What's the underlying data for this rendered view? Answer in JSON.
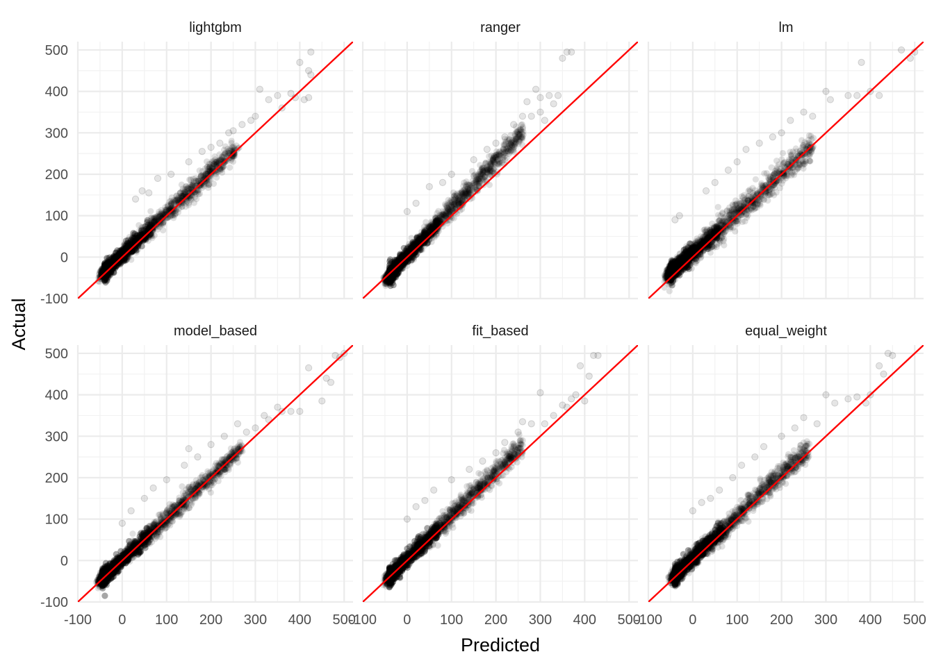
{
  "chart_data": {
    "type": "scatter",
    "xlabel": "Predicted",
    "ylabel": "Actual",
    "xlim": [
      -100,
      520
    ],
    "ylim": [
      -100,
      520
    ],
    "x_ticks": [
      -100,
      0,
      100,
      200,
      300,
      400,
      500
    ],
    "y_ticks": [
      -100,
      0,
      100,
      200,
      300,
      400,
      500
    ],
    "x_tick_labels": [
      "-100",
      "0",
      "100",
      "200",
      "300",
      "400",
      "500"
    ],
    "y_tick_labels": [
      "-100",
      "0",
      "100",
      "200",
      "300",
      "400",
      "500"
    ],
    "grid": true,
    "reference_line": {
      "intercept": 0,
      "slope": 1,
      "color": "#ff0000"
    },
    "point_color": "#000000",
    "point_alpha": 0.1,
    "panels": [
      {
        "title": "lightgbm",
        "bulk": {
          "x_range": [
            -45,
            260
          ],
          "center": "y = x + 5",
          "spread": 22
        },
        "outliers": [
          [
            30,
            140
          ],
          [
            45,
            160
          ],
          [
            60,
            155
          ],
          [
            80,
            190
          ],
          [
            110,
            200
          ],
          [
            150,
            230
          ],
          [
            180,
            255
          ],
          [
            200,
            265
          ],
          [
            220,
            275
          ],
          [
            240,
            300
          ],
          [
            250,
            305
          ],
          [
            270,
            320
          ],
          [
            290,
            330
          ],
          [
            300,
            340
          ],
          [
            310,
            405
          ],
          [
            330,
            380
          ],
          [
            350,
            390
          ],
          [
            360,
            360
          ],
          [
            380,
            395
          ],
          [
            390,
            385
          ],
          [
            400,
            470
          ],
          [
            410,
            380
          ],
          [
            420,
            450
          ],
          [
            420,
            385
          ],
          [
            425,
            495
          ],
          [
            425,
            440
          ]
        ]
      },
      {
        "title": "ranger",
        "bulk": {
          "x_range": [
            -45,
            260
          ],
          "center": "y = 1.15x + 2",
          "spread": 22
        },
        "outliers": [
          [
            0,
            110
          ],
          [
            20,
            130
          ],
          [
            50,
            170
          ],
          [
            80,
            180
          ],
          [
            100,
            200
          ],
          [
            150,
            235
          ],
          [
            180,
            260
          ],
          [
            200,
            275
          ],
          [
            220,
            290
          ],
          [
            240,
            320
          ],
          [
            260,
            340
          ],
          [
            270,
            375
          ],
          [
            280,
            340
          ],
          [
            290,
            405
          ],
          [
            300,
            385
          ],
          [
            320,
            390
          ],
          [
            330,
            370
          ],
          [
            340,
            390
          ],
          [
            350,
            480
          ],
          [
            360,
            495
          ],
          [
            370,
            495
          ],
          [
            300,
            350
          ],
          [
            310,
            330
          ]
        ]
      },
      {
        "title": "lm",
        "bulk": {
          "x_range": [
            -55,
            270
          ],
          "center": "y = 0.95x + 10",
          "spread": 28
        },
        "outliers": [
          [
            -30,
            100
          ],
          [
            -40,
            90
          ],
          [
            -50,
            -40
          ],
          [
            -55,
            -30
          ],
          [
            30,
            160
          ],
          [
            50,
            180
          ],
          [
            80,
            210
          ],
          [
            100,
            230
          ],
          [
            120,
            260
          ],
          [
            150,
            275
          ],
          [
            180,
            290
          ],
          [
            200,
            300
          ],
          [
            220,
            330
          ],
          [
            250,
            350
          ],
          [
            270,
            340
          ],
          [
            300,
            400
          ],
          [
            310,
            380
          ],
          [
            350,
            390
          ],
          [
            370,
            390
          ],
          [
            380,
            470
          ],
          [
            400,
            400
          ],
          [
            420,
            390
          ],
          [
            470,
            500
          ],
          [
            490,
            480
          ],
          [
            500,
            495
          ]
        ]
      },
      {
        "title": "model_based",
        "bulk": {
          "x_range": [
            -50,
            270
          ],
          "center": "y = x + 2",
          "spread": 20
        },
        "outliers": [
          [
            0,
            90
          ],
          [
            20,
            120
          ],
          [
            50,
            150
          ],
          [
            70,
            175
          ],
          [
            100,
            195
          ],
          [
            140,
            230
          ],
          [
            150,
            270
          ],
          [
            170,
            250
          ],
          [
            200,
            280
          ],
          [
            230,
            300
          ],
          [
            260,
            330
          ],
          [
            280,
            310
          ],
          [
            300,
            320
          ],
          [
            320,
            350
          ],
          [
            330,
            340
          ],
          [
            350,
            370
          ],
          [
            360,
            360
          ],
          [
            380,
            360
          ],
          [
            400,
            360
          ],
          [
            420,
            465
          ],
          [
            450,
            385
          ],
          [
            460,
            440
          ],
          [
            470,
            430
          ],
          [
            480,
            495
          ],
          [
            490,
            490
          ],
          [
            500,
            500
          ]
        ]
      },
      {
        "title": "fit_based",
        "bulk": {
          "x_range": [
            -45,
            260
          ],
          "center": "y = 1.05x + 3",
          "spread": 22
        },
        "outliers": [
          [
            0,
            100
          ],
          [
            20,
            130
          ],
          [
            40,
            145
          ],
          [
            60,
            170
          ],
          [
            100,
            195
          ],
          [
            140,
            220
          ],
          [
            170,
            240
          ],
          [
            200,
            260
          ],
          [
            220,
            285
          ],
          [
            250,
            310
          ],
          [
            260,
            335
          ],
          [
            280,
            330
          ],
          [
            300,
            405
          ],
          [
            310,
            330
          ],
          [
            330,
            350
          ],
          [
            350,
            375
          ],
          [
            360,
            370
          ],
          [
            370,
            390
          ],
          [
            380,
            400
          ],
          [
            390,
            470
          ],
          [
            400,
            385
          ],
          [
            410,
            445
          ],
          [
            420,
            495
          ],
          [
            430,
            495
          ]
        ]
      },
      {
        "title": "equal_weight",
        "bulk": {
          "x_range": [
            -45,
            260
          ],
          "center": "y = 1.02x + 5",
          "spread": 24
        },
        "outliers": [
          [
            0,
            120
          ],
          [
            20,
            140
          ],
          [
            40,
            150
          ],
          [
            60,
            170
          ],
          [
            90,
            200
          ],
          [
            110,
            230
          ],
          [
            140,
            250
          ],
          [
            160,
            275
          ],
          [
            200,
            300
          ],
          [
            230,
            320
          ],
          [
            250,
            345
          ],
          [
            280,
            330
          ],
          [
            300,
            400
          ],
          [
            320,
            380
          ],
          [
            350,
            390
          ],
          [
            370,
            395
          ],
          [
            390,
            380
          ],
          [
            400,
            400
          ],
          [
            420,
            470
          ],
          [
            430,
            450
          ],
          [
            440,
            500
          ],
          [
            450,
            495
          ]
        ]
      }
    ]
  }
}
